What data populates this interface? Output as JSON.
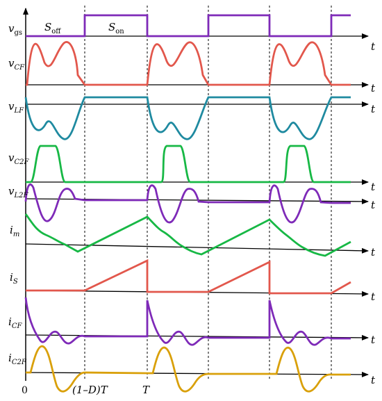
{
  "colors": {
    "purple": "#7e2ab8",
    "red": "#e2574c",
    "teal": "#1f8aa0",
    "green": "#17b845",
    "gold": "#d9a00a",
    "axis": "#000000"
  },
  "traces": [
    {
      "label_main": "v",
      "label_sub": "gs",
      "label_italic_sub": false
    },
    {
      "label_main": "v",
      "label_sub": "CF",
      "label_italic_sub": true
    },
    {
      "label_main": "v",
      "label_sub": "LF",
      "label_italic_sub": true
    },
    {
      "label_main": "v",
      "label_sub": "C2F",
      "label_italic_sub": true
    },
    {
      "label_main": "v",
      "label_sub": "L2F",
      "label_italic_sub": true
    },
    {
      "label_main": "i",
      "label_sub": "m",
      "label_italic_sub": true
    },
    {
      "label_main": "i",
      "label_sub": "S",
      "label_italic_sub": true
    },
    {
      "label_main": "i",
      "label_sub": "CF",
      "label_italic_sub": true
    },
    {
      "label_main": "i",
      "label_sub": "C2F",
      "label_italic_sub": true
    }
  ],
  "axis_label": "t",
  "state_labels": {
    "off_main": "S",
    "off_sub": "off",
    "on_main": "S",
    "on_sub": "on"
  },
  "time_ticks": {
    "zero": "0",
    "mid": "(1–D)T",
    "period": "T"
  }
}
